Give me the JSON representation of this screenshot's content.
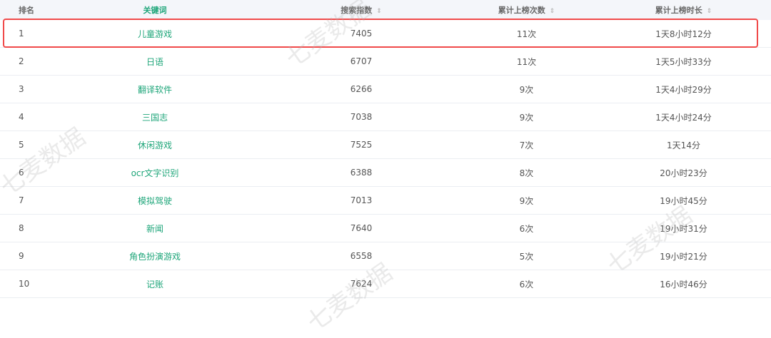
{
  "columns": [
    "排名",
    "关键词",
    "搜索指数",
    "累计上榜次数",
    "累计上榜时长"
  ],
  "sort_icon": "sort-arrows-icon",
  "highlight_color": "#f04a4a",
  "accent": "#1fa67a",
  "watermark": "七麦数据",
  "rows": [
    {
      "rank": "1",
      "keyword": "儿童游戏",
      "index": "7405",
      "count": "11次",
      "duration": "1天8小时12分"
    },
    {
      "rank": "2",
      "keyword": "日语",
      "index": "6707",
      "count": "11次",
      "duration": "1天5小时33分"
    },
    {
      "rank": "3",
      "keyword": "翻译软件",
      "index": "6266",
      "count": "9次",
      "duration": "1天4小时29分"
    },
    {
      "rank": "4",
      "keyword": "三国志",
      "index": "7038",
      "count": "9次",
      "duration": "1天4小时24分"
    },
    {
      "rank": "5",
      "keyword": "休闲游戏",
      "index": "7525",
      "count": "7次",
      "duration": "1天14分"
    },
    {
      "rank": "6",
      "keyword": "ocr文字识别",
      "index": "6388",
      "count": "8次",
      "duration": "20小时23分"
    },
    {
      "rank": "7",
      "keyword": "模拟驾驶",
      "index": "7013",
      "count": "9次",
      "duration": "19小时45分"
    },
    {
      "rank": "8",
      "keyword": "新闻",
      "index": "7640",
      "count": "6次",
      "duration": "19小时31分"
    },
    {
      "rank": "9",
      "keyword": "角色扮演游戏",
      "index": "6558",
      "count": "5次",
      "duration": "19小时21分"
    },
    {
      "rank": "10",
      "keyword": "记账",
      "index": "7624",
      "count": "6次",
      "duration": "16小时46分"
    }
  ]
}
